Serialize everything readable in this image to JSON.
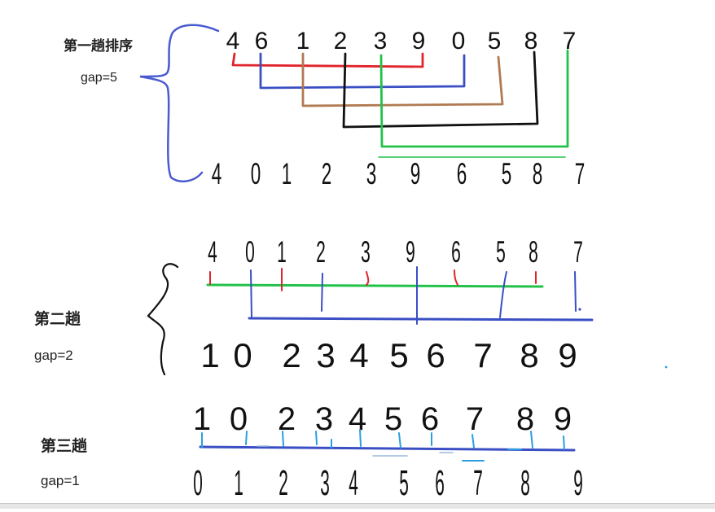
{
  "passes": [
    {
      "label": "第一趟排序",
      "gap_label": "gap=5",
      "before": [
        "4",
        "6",
        "1",
        "2",
        "3",
        "9",
        "0",
        "5",
        "8",
        "7"
      ],
      "after": [
        "4",
        "0",
        "1",
        "2",
        "3",
        "9",
        "6",
        "5",
        "8",
        "7"
      ]
    },
    {
      "label": "第二趟",
      "gap_label": "gap=2",
      "before": [
        "4",
        "0",
        "1",
        "2",
        "3",
        "9",
        "6",
        "5",
        "8",
        "7"
      ],
      "after": [
        "1",
        "0",
        "2",
        "3",
        "4",
        "5",
        "6",
        "7",
        "8",
        "9"
      ]
    },
    {
      "label": "第三趟",
      "gap_label": "gap=1",
      "before": [
        "1",
        "0",
        "2",
        "3",
        "4",
        "5",
        "6",
        "7",
        "8",
        "9"
      ],
      "after": [
        "0",
        "1",
        "2",
        "3",
        "4",
        "5",
        "6",
        "7",
        "8",
        "9"
      ]
    }
  ],
  "colors": {
    "text": "#111111",
    "red": "#e0242b",
    "blue": "#3b4fc4",
    "brown": "#b07a52",
    "black": "#111111",
    "green": "#22c24a",
    "cyan": "#2a9fe0",
    "brace": "#4a5bd0"
  }
}
